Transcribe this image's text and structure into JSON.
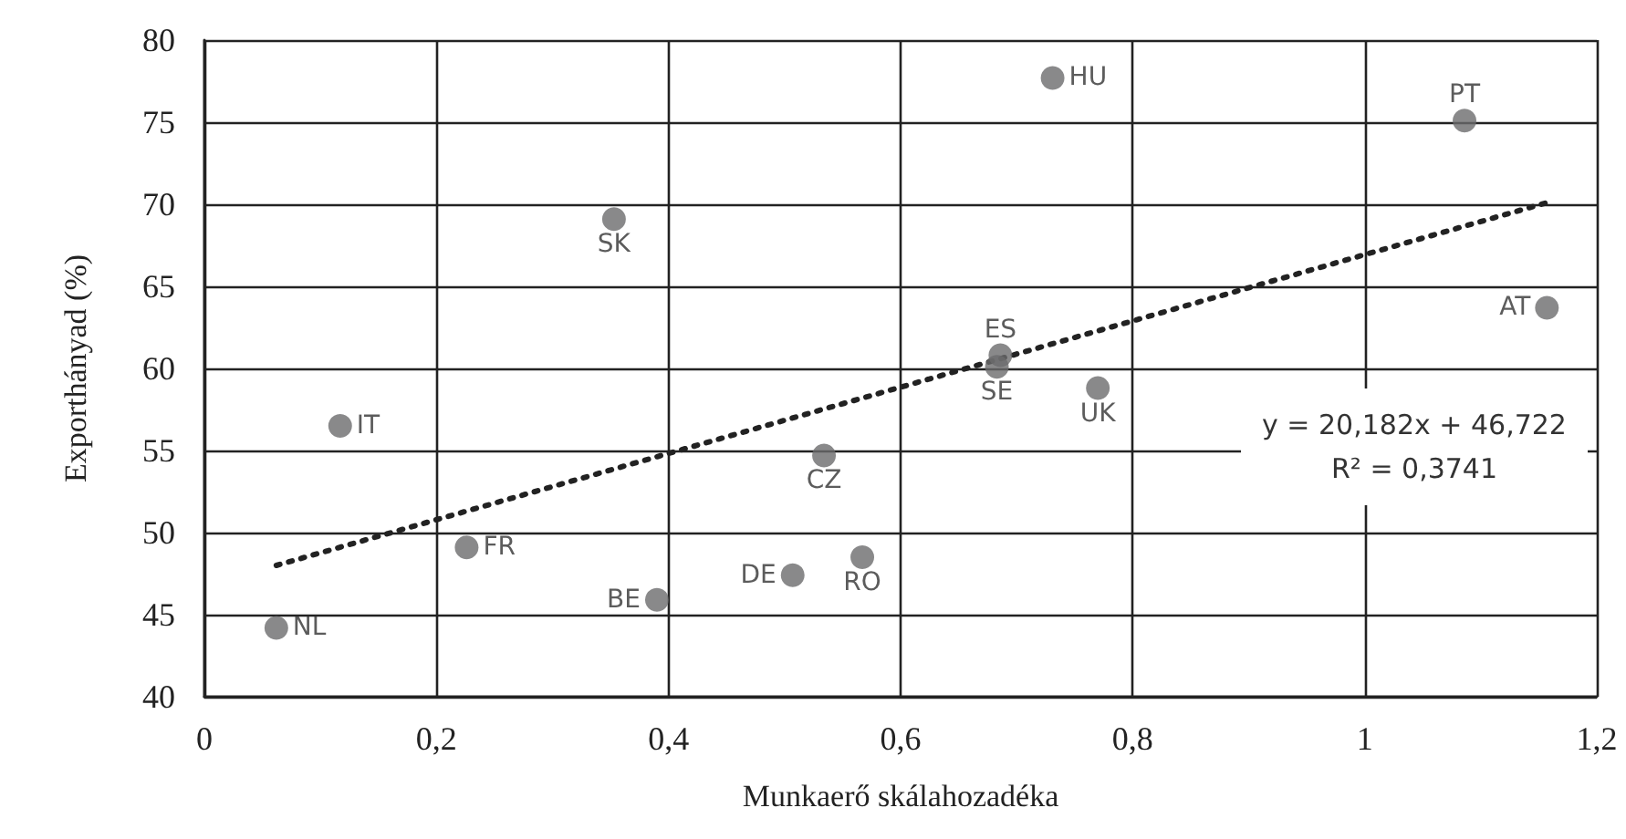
{
  "chart_data": {
    "type": "scatter",
    "xlabel": "Munkaerő skálahozadéka",
    "ylabel": "Exporthányad (%)",
    "x": [
      0.062,
      0.117,
      0.353,
      0.226,
      0.39,
      0.507,
      0.534,
      0.567,
      0.686,
      0.683,
      0.731,
      0.77,
      1.086,
      1.157
    ],
    "series": [
      {
        "color": "#6b6b6d",
        "values": [
          44.2,
          56.5,
          69.1,
          49.1,
          45.9,
          47.4,
          54.7,
          48.5,
          60.8,
          60.1,
          77.7,
          58.8,
          75.1,
          63.7
        ]
      },
      {
        "type": "line",
        "color": "#222222",
        "line_style": "dotted",
        "marker": "none",
        "x": [
          0.062,
          1.157
        ],
        "values": [
          48,
          70.1
        ]
      }
    ],
    "annotations": [
      {
        "text": "NL",
        "x": 0.062,
        "y": 44.2
      },
      {
        "text": "IT",
        "x": 0.117,
        "y": 56.5
      },
      {
        "text": "SK",
        "x": 0.353,
        "y": 69.1
      },
      {
        "text": "FR",
        "x": 0.226,
        "y": 49.1
      },
      {
        "text": "BE",
        "x": 0.39,
        "y": 45.9
      },
      {
        "text": "DE",
        "x": 0.507,
        "y": 47.4
      },
      {
        "text": "CZ",
        "x": 0.534,
        "y": 54.7
      },
      {
        "text": "RO",
        "x": 0.567,
        "y": 48.5
      },
      {
        "text": "ES",
        "x": 0.686,
        "y": 60.8
      },
      {
        "text": "SE",
        "x": 0.683,
        "y": 60.1
      },
      {
        "text": "HU",
        "x": 0.731,
        "y": 77.7
      },
      {
        "text": "UK",
        "x": 0.77,
        "y": 58.8
      },
      {
        "text": "PT",
        "x": 1.086,
        "y": 75.1
      },
      {
        "text": "AT",
        "x": 1.157,
        "y": 63.7
      },
      "y = 20,182x + 46,722",
      "R² = 0,3741"
    ],
    "xlim": [
      0,
      1.2
    ],
    "ylim": [
      40,
      80
    ],
    "xticks": [
      0,
      {
        "value": 0.2,
        "label": "0,2"
      },
      {
        "value": 0.4,
        "label": "0,4"
      },
      {
        "value": 0.6,
        "label": "0,6"
      },
      {
        "value": 0.8,
        "label": "0,8"
      },
      1,
      {
        "value": 1.2,
        "label": "1,2"
      }
    ],
    "yticks": [
      40,
      45,
      50,
      55,
      60,
      65,
      70,
      75,
      80
    ],
    "grid": true,
    "marker": "circle"
  }
}
